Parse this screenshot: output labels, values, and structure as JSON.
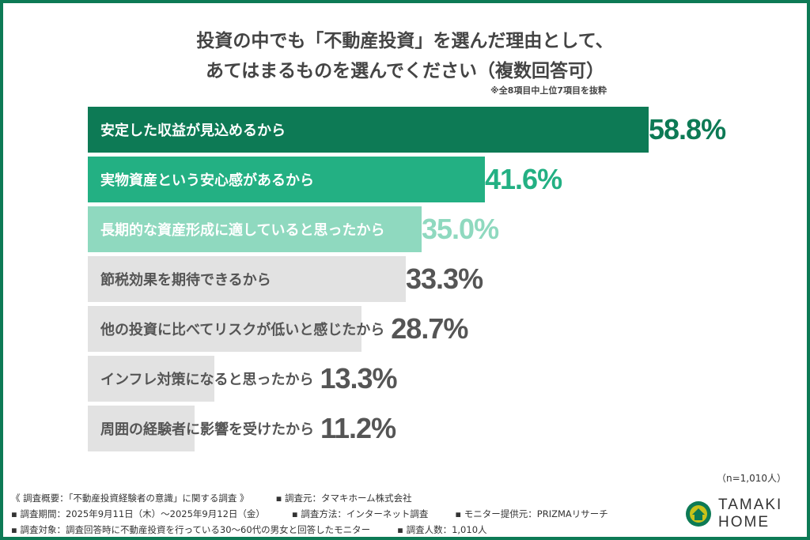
{
  "chart_data": {
    "type": "bar",
    "orientation": "horizontal",
    "title": "投資の中でも「不動産投資」を選んだ理由として、",
    "subtitle": "あてはまるものを選んでください（複数回答可）",
    "note": "※全8項目中上位7項目を抜粋",
    "categories": [
      "安定した収益が見込めるから",
      "実物資産という安心感があるから",
      "長期的な資産形成に適していると思ったから",
      "節税効果を期待できるから",
      "他の投資に比べてリスクが低いと感じたから",
      "インフレ対策になると思ったから",
      "周囲の経験者に影響を受けたから"
    ],
    "values": [
      58.8,
      41.6,
      35.0,
      33.3,
      28.7,
      13.3,
      11.2
    ],
    "value_labels": [
      "58.8%",
      "41.6%",
      "35.0%",
      "33.3%",
      "28.7%",
      "13.3%",
      "11.2%"
    ],
    "bar_colors": [
      "#0d7a55",
      "#23b083",
      "#8fd9bf",
      "#e2e2e2",
      "#e2e2e2",
      "#e2e2e2",
      "#e2e2e2"
    ],
    "label_colors": [
      "#ffffff",
      "#ffffff",
      "#ffffff",
      "#555555",
      "#555555",
      "#555555",
      "#555555"
    ],
    "value_colors": [
      "#0d7a55",
      "#23b083",
      "#8fd9bf",
      "#555555",
      "#555555",
      "#555555",
      "#555555"
    ],
    "xlim": [
      0,
      100
    ],
    "grid": false
  },
  "sample": "（n=1,010人）",
  "footer": {
    "line1": [
      "《 調査概要：「不動産投資経験者の意識」に関する調査 》",
      "▪ 調査元：タマキホーム株式会社"
    ],
    "line2": [
      "▪ 調査期間：2025年9月11日（木）～2025年9月12日（金）",
      "▪ 調査方法：インターネット調査",
      "▪ モニター提供元：PRIZMAリサーチ"
    ],
    "line3": [
      "▪ 調査対象：調査回答時に不動産投資を行っている30～60代の男女と回答したモニター",
      "▪ 調査人数：1,010人"
    ]
  },
  "logo": {
    "line1": "TAMAKI",
    "line2": "HOME",
    "color": "#0d7a55"
  }
}
